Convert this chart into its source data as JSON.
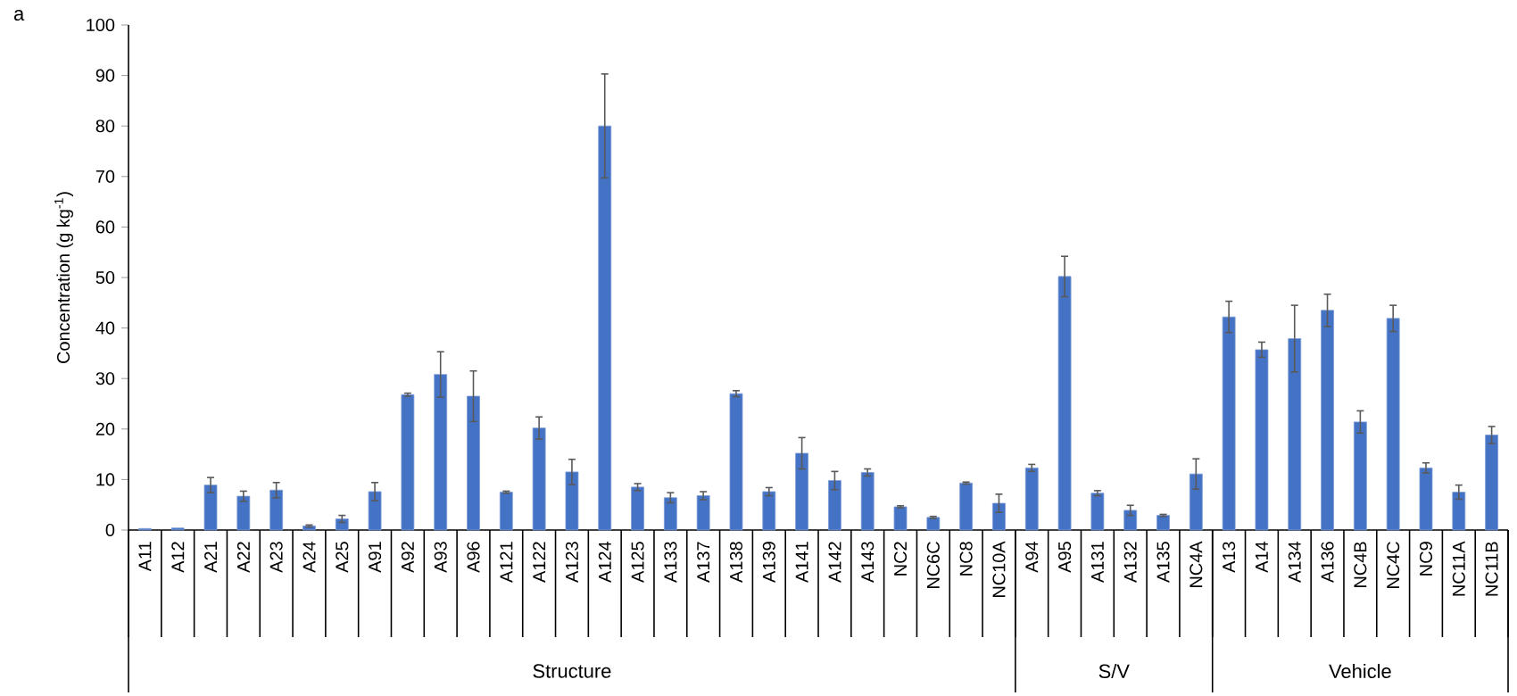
{
  "chart_data": {
    "type": "bar",
    "title": "a",
    "ylabel": "Concentration (g kg$^{-1}$)",
    "categories": [
      "A11",
      "A12",
      "A21",
      "A22",
      "A23",
      "A24",
      "A25",
      "A91",
      "A92",
      "A93",
      "A96",
      "A121",
      "A122",
      "A123",
      "A124",
      "A125",
      "A133",
      "A137",
      "A138",
      "A139",
      "A141",
      "A142",
      "A143",
      "NC2",
      "NC6C",
      "NC8",
      "NC10A",
      "A94",
      "A95",
      "A131",
      "A132",
      "A135",
      "NC4A",
      "A13",
      "A14",
      "A134",
      "A136",
      "NC4B",
      "NC4C",
      "NC9",
      "NC11A",
      "NC11B"
    ],
    "values": [
      0.3,
      0.4,
      8.9,
      6.7,
      7.9,
      0.8,
      2.2,
      7.6,
      26.8,
      30.8,
      26.5,
      7.5,
      20.2,
      11.5,
      80,
      8.5,
      6.4,
      6.8,
      27,
      7.6,
      15.2,
      9.8,
      11.4,
      4.6,
      2.5,
      9.3,
      5.3,
      12.3,
      50.2,
      7.3,
      3.9,
      2.9,
      11.1,
      42.2,
      35.7,
      37.9,
      43.5,
      21.4,
      41.9,
      12.3,
      7.5,
      18.8
    ],
    "errors": [
      null,
      null,
      1.5,
      1,
      1.5,
      0.2,
      0.7,
      1.8,
      0.3,
      4.5,
      5,
      0.2,
      2.2,
      2.5,
      10.3,
      0.7,
      1,
      0.8,
      0.6,
      0.8,
      3.1,
      1.8,
      0.7,
      0.2,
      0.2,
      0.2,
      1.8,
      0.7,
      4,
      0.5,
      1,
      0.2,
      3,
      3.1,
      1.5,
      6.6,
      3.2,
      2.2,
      2.6,
      1,
      1.4,
      1.7
    ],
    "color": "#4472c4",
    "ylim": [
      0,
      100
    ],
    "yticks": [
      0,
      10,
      20,
      30,
      40,
      50,
      60,
      70,
      80,
      90,
      100
    ],
    "annotations": [
      "Structure",
      "S/V",
      "Vehicle"
    ]
  }
}
